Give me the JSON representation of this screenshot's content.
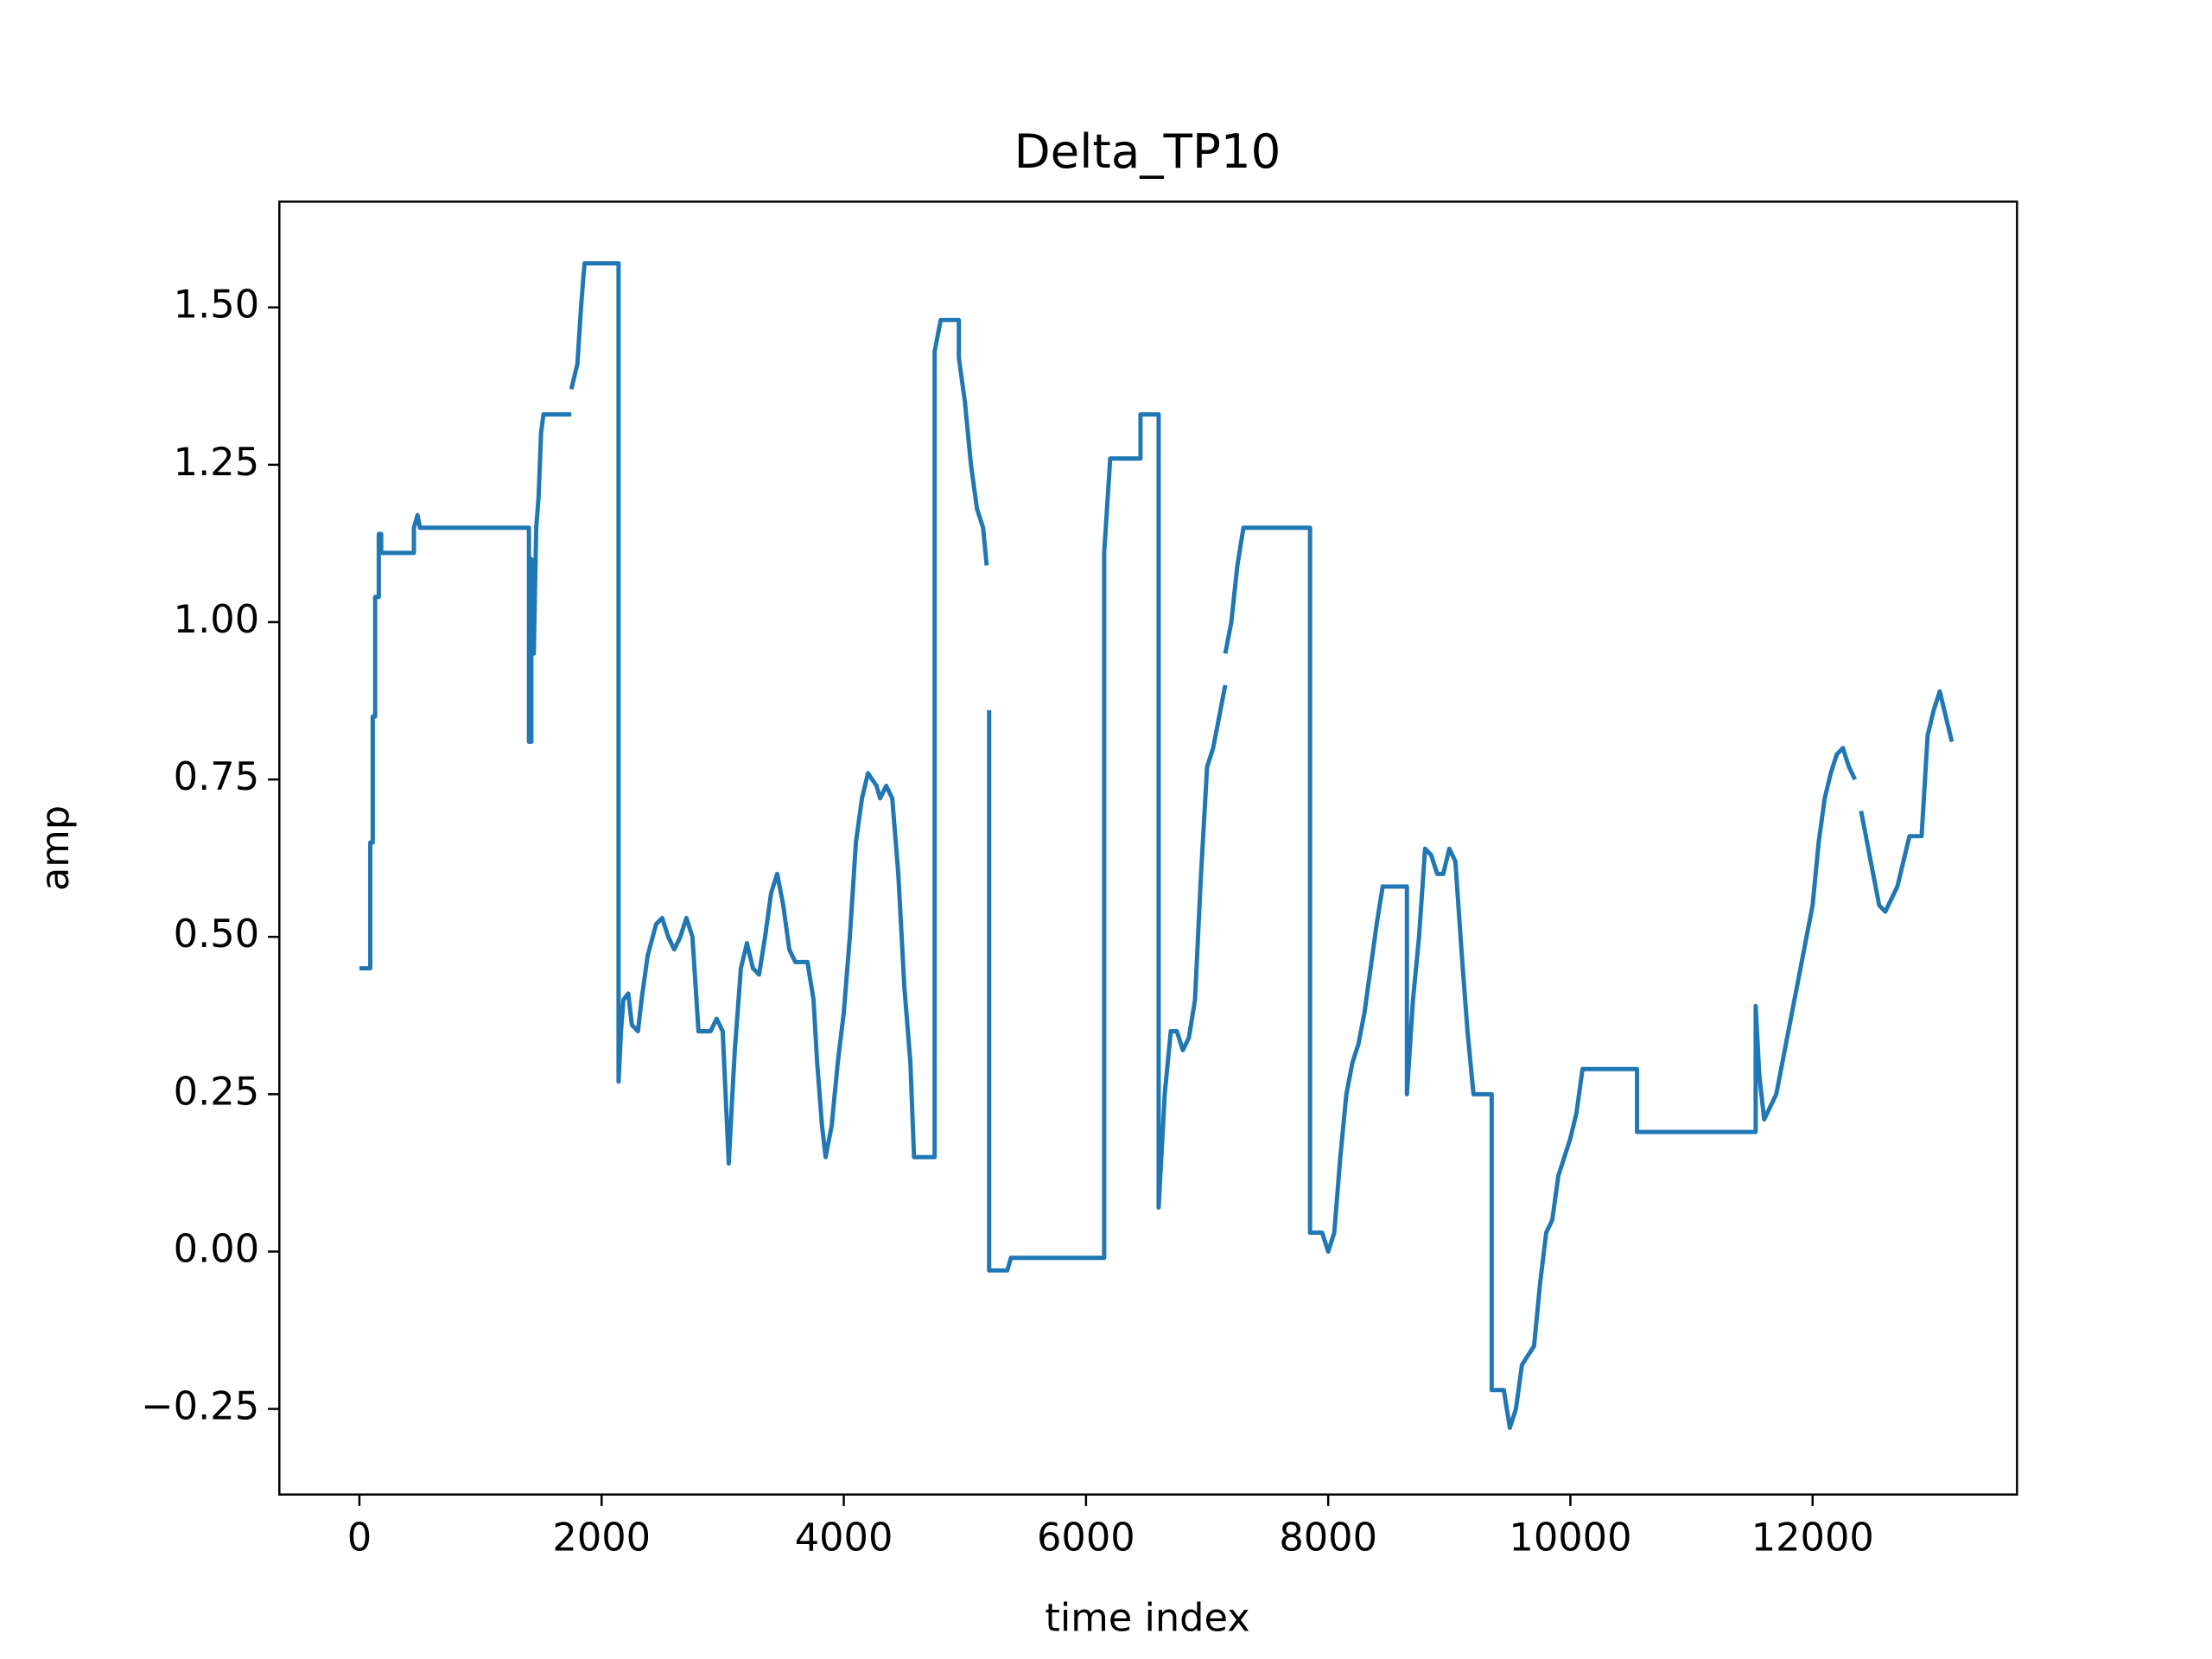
{
  "chart_data": {
    "type": "line",
    "title": "Delta_TP10",
    "x_label": "time index",
    "y_label": "amp",
    "color": "#1f77b4",
    "x": [
      0,
      90,
      90,
      110,
      110,
      130,
      130,
      160,
      160,
      180,
      180,
      450,
      450,
      480,
      500,
      1400,
      1400,
      1420,
      1420,
      1440,
      1460,
      1480,
      1500,
      1520,
      1750,
      1750,
      1750,
      1800,
      1830,
      1850,
      1860,
      2140,
      2140,
      2160,
      2180,
      2220,
      2250,
      2300,
      2330,
      2380,
      2450,
      2500,
      2550,
      2600,
      2650,
      2700,
      2750,
      2800,
      2900,
      2950,
      3000,
      3050,
      3080,
      3100,
      3150,
      3200,
      3250,
      3300,
      3350,
      3400,
      3450,
      3500,
      3550,
      3600,
      3700,
      3750,
      3780,
      3820,
      3850,
      3900,
      3950,
      4000,
      4050,
      4100,
      4150,
      4200,
      4270,
      4300,
      4350,
      4400,
      4450,
      4500,
      4550,
      4580,
      4750,
      4750,
      4800,
      4950,
      4950,
      5000,
      5050,
      5100,
      5150,
      5180,
      5180,
      5200,
      5200,
      5350,
      5380,
      6150,
      6150,
      6200,
      6450,
      6450,
      6600,
      6600,
      6650,
      6700,
      6750,
      6800,
      6850,
      6900,
      6950,
      7000,
      7050,
      7100,
      7150,
      7150,
      7150,
      7200,
      7250,
      7300,
      7850,
      7850,
      7950,
      8000,
      8050,
      8100,
      8150,
      8200,
      8250,
      8300,
      8350,
      8400,
      8450,
      8650,
      8650,
      8700,
      8750,
      8800,
      8850,
      8900,
      8950,
      9000,
      9050,
      9100,
      9150,
      9200,
      9350,
      9350,
      9450,
      9500,
      9550,
      9600,
      9700,
      9750,
      9800,
      9850,
      9900,
      10000,
      10050,
      10100,
      10550,
      10550,
      11530,
      11530,
      11560,
      11600,
      11700,
      11800,
      11900,
      12000,
      12050,
      12100,
      12150,
      12200,
      12250,
      12300,
      12350,
      12350,
      12400,
      12450,
      12500,
      12550,
      12600,
      12700,
      12800,
      12900,
      12950,
      13000,
      13050,
      13100,
      13150
    ],
    "values": [
      0.45,
      0.45,
      0.65,
      0.65,
      0.85,
      0.85,
      1.04,
      1.04,
      1.14,
      1.14,
      1.11,
      1.11,
      1.15,
      1.17,
      1.15,
      1.15,
      0.81,
      0.81,
      1.1,
      0.95,
      1.15,
      1.2,
      1.3,
      1.33,
      1.33,
      null,
      1.37,
      1.41,
      1.5,
      1.55,
      1.57,
      1.57,
      0.27,
      0.35,
      0.4,
      0.41,
      0.36,
      0.35,
      0.4,
      0.47,
      0.52,
      0.53,
      0.5,
      0.48,
      0.5,
      0.53,
      0.5,
      0.35,
      0.35,
      0.37,
      0.35,
      0.14,
      0.25,
      0.32,
      0.45,
      0.49,
      0.45,
      0.44,
      0.5,
      0.57,
      0.6,
      0.55,
      0.48,
      0.46,
      0.46,
      0.4,
      0.3,
      0.2,
      0.15,
      0.2,
      0.3,
      0.38,
      0.5,
      0.65,
      0.72,
      0.76,
      0.74,
      0.72,
      0.74,
      0.72,
      0.6,
      0.42,
      0.3,
      0.15,
      0.15,
      1.43,
      1.48,
      1.48,
      1.42,
      1.35,
      1.25,
      1.18,
      1.15,
      1.09,
      null,
      0.86,
      -0.03,
      -0.03,
      -0.01,
      -0.01,
      1.11,
      1.26,
      1.26,
      1.33,
      1.33,
      0.07,
      0.25,
      0.35,
      0.35,
      0.32,
      0.34,
      0.4,
      0.6,
      0.77,
      0.8,
      0.85,
      0.9,
      null,
      0.95,
      1.0,
      1.09,
      1.15,
      1.15,
      0.03,
      0.03,
      0.0,
      0.03,
      0.15,
      0.25,
      0.3,
      0.33,
      0.38,
      0.45,
      0.52,
      0.58,
      0.58,
      0.25,
      0.4,
      0.5,
      0.64,
      0.63,
      0.6,
      0.6,
      0.64,
      0.62,
      0.48,
      0.35,
      0.25,
      0.25,
      -0.22,
      -0.22,
      -0.28,
      -0.25,
      -0.18,
      -0.15,
      -0.05,
      0.03,
      0.05,
      0.12,
      0.18,
      0.22,
      0.29,
      0.29,
      0.19,
      0.19,
      0.39,
      0.28,
      0.21,
      0.25,
      0.35,
      0.45,
      0.55,
      0.65,
      0.72,
      0.76,
      0.79,
      0.8,
      0.77,
      0.75,
      null,
      0.7,
      0.65,
      0.6,
      0.55,
      0.54,
      0.58,
      0.66,
      0.66,
      0.82,
      0.86,
      0.89,
      0.85,
      0.81
    ],
    "xlim": [
      -661,
      13688
    ],
    "ylim": [
      -0.386,
      1.668
    ],
    "xticks": [
      0,
      2000,
      4000,
      6000,
      8000,
      10000,
      12000
    ],
    "yticks": [
      {
        "value": -0.25,
        "label": "−0.25"
      },
      {
        "value": 0,
        "label": "0.00"
      },
      0.25,
      {
        "value": 0.5,
        "label": "0.50"
      },
      0.75,
      {
        "value": 1,
        "label": "1.00"
      },
      1.25,
      {
        "value": 1.5,
        "label": "1.50"
      }
    ]
  }
}
